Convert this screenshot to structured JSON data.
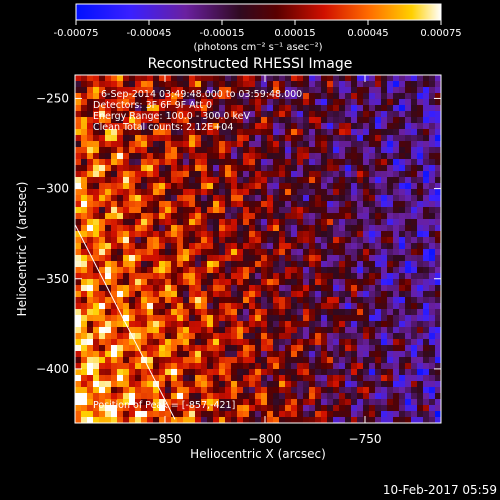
{
  "chart_data": {
    "type": "heatmap",
    "title": "Reconstructed RHESSI Image",
    "xlabel": "Heliocentric X (arcsec)",
    "ylabel": "Heliocentric Y (arcsec)",
    "xlim": [
      -895,
      -712
    ],
    "ylim": [
      -430,
      -237
    ],
    "x_ticks": [
      -850,
      -800,
      -750
    ],
    "y_ticks": [
      -250,
      -300,
      -350,
      -400
    ],
    "colorbar": {
      "label": "(photons cm⁻² s⁻¹ asec⁻²)",
      "range": [
        -0.00075,
        0.00075
      ],
      "ticks": [
        "-0.00075",
        "-0.00045",
        "-0.00015",
        "0.00015",
        "0.00045",
        "0.00075"
      ]
    },
    "annotations": [
      "6-Sep-2014 03:49:48.000 to 03:59:48.000",
      "Detectors: 3F 6F 9F  Att 0",
      "Energy Range: 100.0 - 300.0 keV",
      "Clean    Total counts: 2.12E+04",
      "Position of Peak = [-857,-421]"
    ],
    "peak": [
      -857,
      -421
    ],
    "limb_line": {
      "from": [
        -895,
        -320
      ],
      "to": [
        -845,
        -428
      ]
    },
    "grid": false
  },
  "footer": {
    "timestamp": "10-Feb-2017 05:59"
  }
}
